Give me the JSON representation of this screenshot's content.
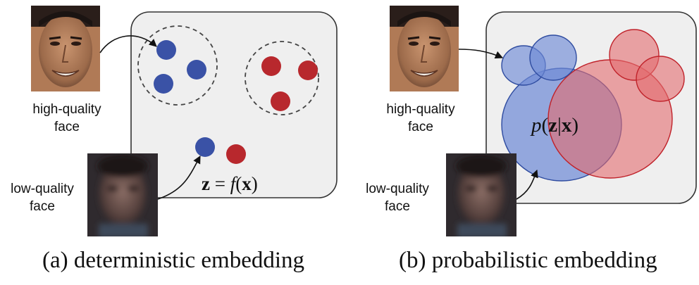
{
  "panel_a": {
    "high_quality_label_line1": "high-quality",
    "high_quality_label_line2": "face",
    "low_quality_label_line1": "low-quality",
    "low_quality_label_line2": "face",
    "formula_left": "z",
    "formula_eq": " = ",
    "formula_f": "f",
    "formula_open": "(",
    "formula_x": "x",
    "formula_close": ")",
    "caption": "(a) deterministic embedding",
    "class_colors": {
      "blue": "#3a52a6",
      "red": "#b8282d"
    }
  },
  "panel_b": {
    "high_quality_label_line1": "high-quality",
    "high_quality_label_line2": "face",
    "low_quality_label_line1": "low-quality",
    "low_quality_label_line2": "face",
    "formula_p": "p",
    "formula_open": "(",
    "formula_z": "z",
    "formula_bar": "|",
    "formula_x": "x",
    "formula_close": ")",
    "caption": "(b) probabilistic embedding",
    "class_colors": {
      "blue": "#6f8bd6",
      "red": "#e36b6e"
    }
  }
}
